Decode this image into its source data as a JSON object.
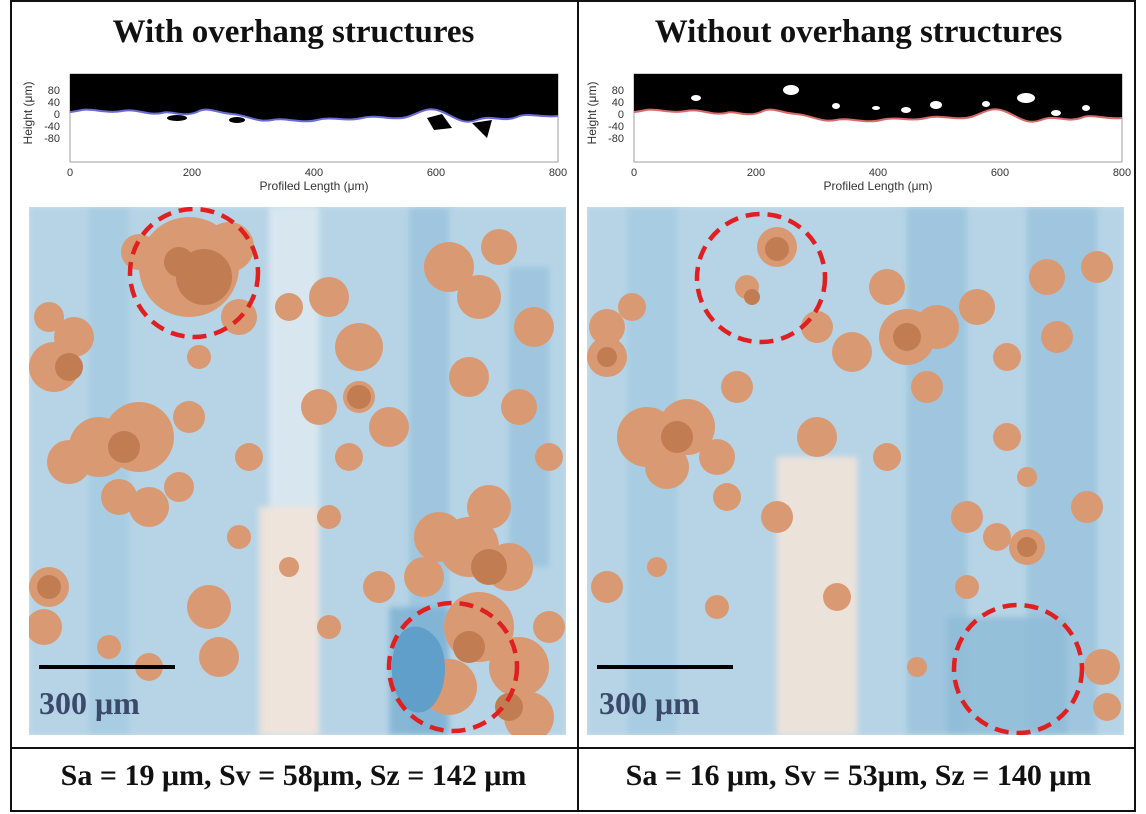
{
  "panels": [
    {
      "title": "With overhang structures",
      "metrics": "Sa = 19 μm, Sv = 58μm, Sz = 142 μm",
      "profile": {
        "ylabel": "Height (μm)",
        "xlabel": "Profiled Length (μm)",
        "yticks": [
          "80",
          "40",
          "0",
          "-40",
          "-80"
        ],
        "xticks": [
          "0",
          "200",
          "400",
          "600",
          "800"
        ],
        "line_color": "#6a6ad8"
      },
      "scalebar": "300 μm"
    },
    {
      "title": "Without overhang structures",
      "metrics": "Sa = 16 μm, Sv = 53μm, Sz = 140 μm",
      "profile": {
        "ylabel": "Height (μm)",
        "xlabel": "Profiled Length (μm)",
        "yticks": [
          "80",
          "40",
          "0",
          "-40",
          "-80"
        ],
        "xticks": [
          "0",
          "200",
          "400",
          "600",
          "800"
        ],
        "line_color": "#d86a6a"
      },
      "scalebar": "300 μm"
    }
  ],
  "colors": {
    "blue": "#a9cde3",
    "blue_dark": "#6fa8cc",
    "orange": "#d9946a",
    "orange_dark": "#c07040",
    "circle": "#e02020"
  }
}
